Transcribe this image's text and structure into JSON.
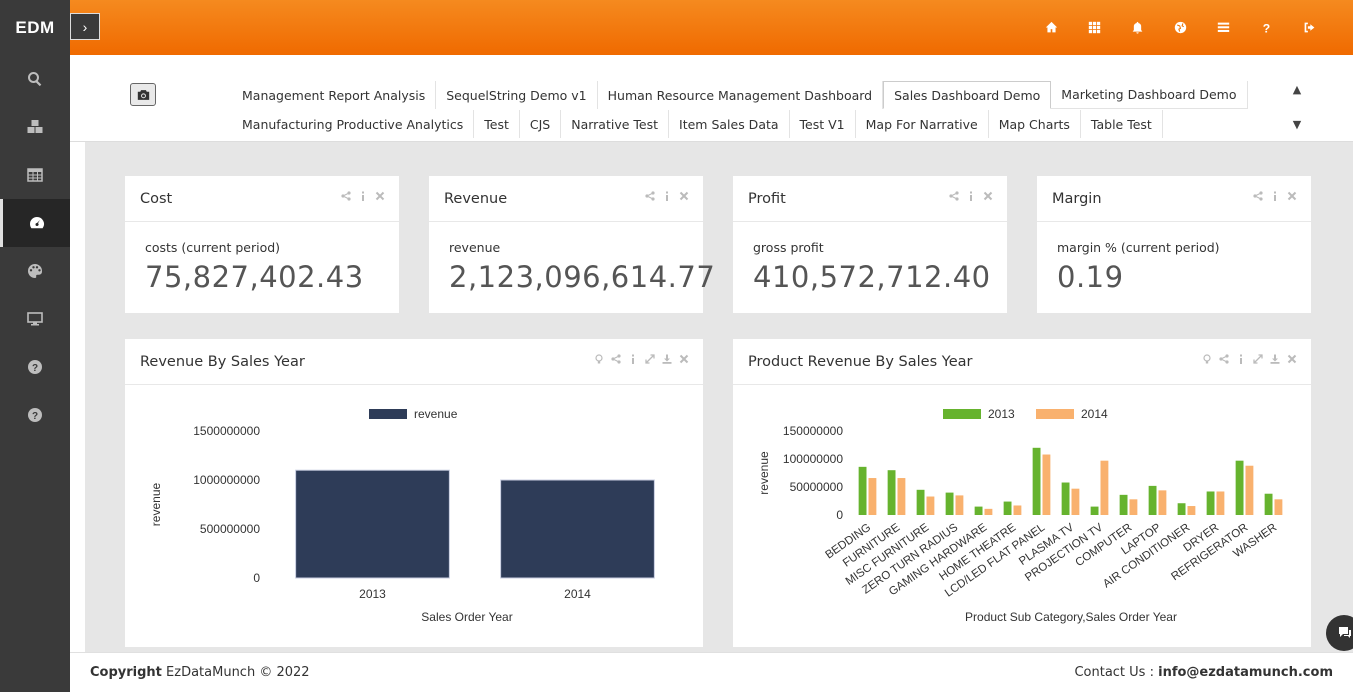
{
  "app": {
    "brand": "EDM",
    "toggle_glyph": "›"
  },
  "sidebar": {
    "items": [
      {
        "icon": "search-icon"
      },
      {
        "icon": "cubes-icon"
      },
      {
        "icon": "table-icon"
      },
      {
        "icon": "dashboard-icon",
        "active": true
      },
      {
        "icon": "palette-icon"
      },
      {
        "icon": "desktop-icon"
      },
      {
        "icon": "help-icon"
      },
      {
        "icon": "help-icon"
      }
    ]
  },
  "header": {
    "icons": [
      "home-icon",
      "grid-icon",
      "bell-icon",
      "globe-icon",
      "list-icon",
      "question-icon",
      "logout-icon"
    ],
    "accent": "#f07400"
  },
  "tabs": {
    "row1": [
      "Management Report Analysis",
      "SequelString Demo v1",
      "Human Resource Management Dashboard",
      "Sales Dashboard Demo",
      "Marketing Dashboard Demo"
    ],
    "row2": [
      "Manufacturing Productive Analytics",
      "Test",
      "CJS",
      "Narrative Test",
      "Item Sales Data",
      "Test V1",
      "Map For Narrative",
      "Map Charts",
      "Table Test"
    ],
    "active": "Sales Dashboard Demo"
  },
  "kpis": [
    {
      "title": "Cost",
      "label": "costs (current period)",
      "value": "75,827,402.43"
    },
    {
      "title": "Revenue",
      "label": "revenue",
      "value": "2,123,096,614.77"
    },
    {
      "title": "Profit",
      "label": "gross profit",
      "value": "410,572,712.40"
    },
    {
      "title": "Margin",
      "label": "margin % (current period)",
      "value": "0.19"
    }
  ],
  "charts": {
    "left_title": "Revenue By Sales Year",
    "right_title": "Product Revenue By Sales Year"
  },
  "chart_data": [
    {
      "type": "bar",
      "title": "Revenue By Sales Year",
      "categories": [
        "2013",
        "2014"
      ],
      "series": [
        {
          "name": "revenue",
          "values": [
            1100000000,
            1000000000
          ],
          "color": "#2e3c58"
        }
      ],
      "xlabel": "Sales Order Year",
      "ylabel": "revenue",
      "yticks": [
        "0",
        "500000000",
        "1000000000",
        "1500000000"
      ],
      "ylim": [
        0,
        1500000000
      ],
      "legend": "top"
    },
    {
      "type": "bar",
      "title": "Product Revenue By Sales Year",
      "categories": [
        "BEDDING",
        "FURNITURE",
        "MISC FURNITURE",
        "ZERO TURN RADIUS",
        "GAMING HARDWARE",
        "HOME THEATRE",
        "LCD/LED FLAT PANEL",
        "PLASMA TV",
        "PROJECTION TV",
        "COMPUTER",
        "LAPTOP",
        "AIR CONDITIONER",
        "DRYER",
        "REFRIGERATOR",
        "WASHER"
      ],
      "series": [
        {
          "name": "2013",
          "values": [
            86000000,
            80000000,
            45000000,
            40000000,
            15000000,
            24000000,
            120000000,
            58000000,
            15000000,
            36000000,
            52000000,
            21000000,
            42000000,
            97000000,
            38000000
          ],
          "color": "#66b32e"
        },
        {
          "name": "2014",
          "values": [
            66000000,
            66000000,
            33000000,
            35000000,
            11000000,
            17000000,
            108000000,
            47000000,
            97000000,
            28000000,
            44000000,
            16000000,
            42000000,
            88000000,
            28000000
          ],
          "color": "#f9b16e"
        }
      ],
      "xlabel": "Product Sub Category,Sales Order Year",
      "ylabel": "revenue",
      "yticks": [
        "0",
        "50000000",
        "100000000",
        "150000000"
      ],
      "ylim": [
        0,
        150000000
      ],
      "legend": "top"
    }
  ],
  "footer": {
    "copyright_label": "Copyright",
    "copyright_text": " EzDataMunch © 2022",
    "contact_label": "Contact Us : ",
    "contact_email": "info@ezdatamunch.com"
  }
}
